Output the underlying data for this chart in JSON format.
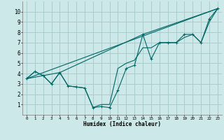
{
  "xlabel": "Humidex (Indice chaleur)",
  "background_color": "#cce8e8",
  "grid_color": "#aacccc",
  "line_color": "#006666",
  "xlim": [
    -0.5,
    23.5
  ],
  "ylim": [
    0,
    11
  ],
  "xticks": [
    0,
    1,
    2,
    3,
    4,
    5,
    6,
    7,
    8,
    9,
    10,
    11,
    12,
    13,
    14,
    15,
    16,
    17,
    18,
    19,
    20,
    21,
    22,
    23
  ],
  "yticks": [
    1,
    2,
    3,
    4,
    5,
    6,
    7,
    8,
    9,
    10
  ],
  "line1_x": [
    0,
    1,
    2,
    3,
    4,
    5,
    6,
    7,
    8,
    9,
    10,
    11,
    12,
    13,
    14,
    15,
    16,
    17,
    18,
    19,
    20,
    21,
    22,
    23
  ],
  "line1_y": [
    3.5,
    4.2,
    3.8,
    3.0,
    4.1,
    2.8,
    2.7,
    2.6,
    0.7,
    0.8,
    0.7,
    2.4,
    4.5,
    4.8,
    7.8,
    5.4,
    7.0,
    7.0,
    7.0,
    7.8,
    7.8,
    7.0,
    9.3,
    10.3
  ],
  "line2_x": [
    0,
    1,
    2,
    3,
    4,
    5,
    6,
    7,
    8,
    9,
    10,
    11,
    12,
    13,
    14,
    15,
    16,
    17,
    18,
    19,
    20,
    21,
    22,
    23
  ],
  "line2_y": [
    3.5,
    4.2,
    3.8,
    3.0,
    4.1,
    2.8,
    2.7,
    2.6,
    0.7,
    1.0,
    1.0,
    4.5,
    5.0,
    5.3,
    6.5,
    6.5,
    7.0,
    7.0,
    7.0,
    7.5,
    7.8,
    7.0,
    9.0,
    10.3
  ],
  "line3_x": [
    0,
    23
  ],
  "line3_y": [
    3.5,
    10.3
  ],
  "line4_x": [
    0,
    4,
    14,
    23
  ],
  "line4_y": [
    3.5,
    4.1,
    7.8,
    10.3
  ]
}
